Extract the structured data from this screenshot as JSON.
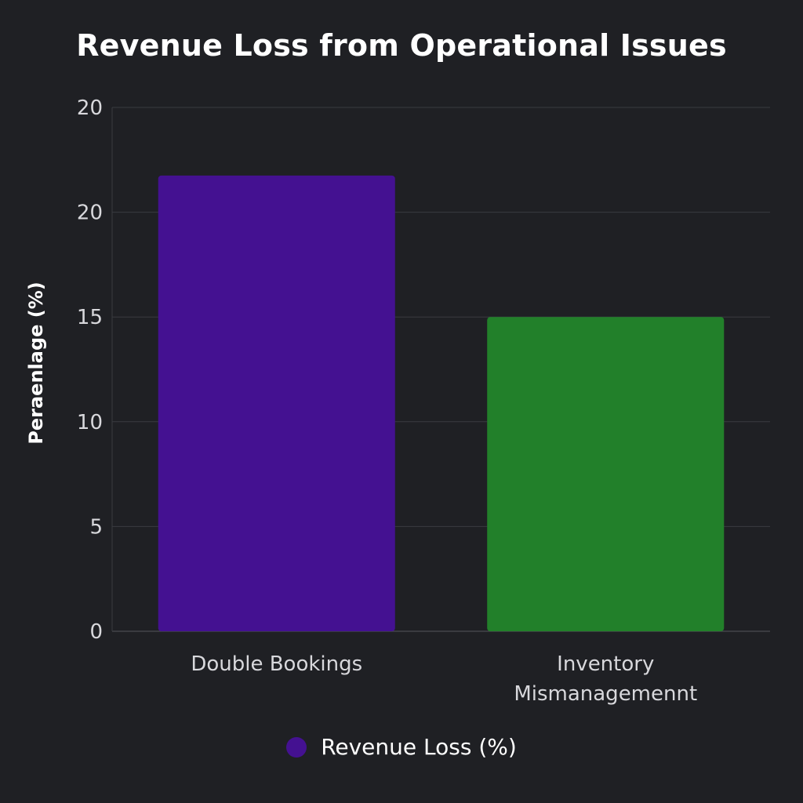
{
  "chart_data": {
    "type": "bar",
    "title": "Revenue Loss from Operational Issues",
    "ylabel": "Peraenlage (%)",
    "xlabel": "",
    "categories": [
      [
        "Double Bookings"
      ],
      [
        "Inventory",
        "Mismanagemennt"
      ]
    ],
    "series": [
      {
        "name": "Revenue Loss (%)",
        "values": [
          21.75,
          15
        ],
        "colors": [
          "#441191",
          "#22802a"
        ]
      }
    ],
    "yticks": [
      "0",
      "5",
      "10",
      "15",
      "20",
      "20"
    ],
    "ylim": [
      0,
      25
    ],
    "grid": true,
    "legend": {
      "position": "bottom-center",
      "color": "#441191"
    }
  }
}
